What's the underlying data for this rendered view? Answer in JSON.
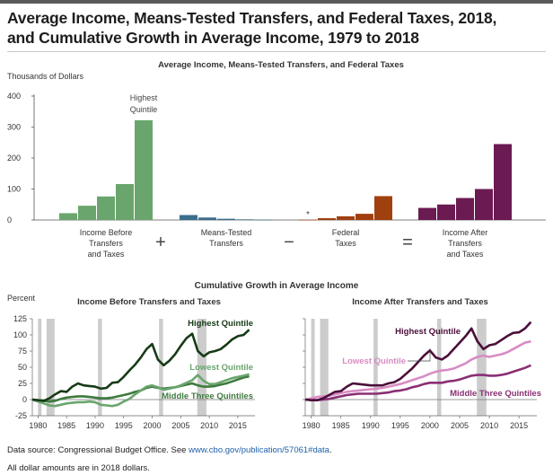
{
  "title_line1": "Average Income, Means-Tested Transfers, and Federal Taxes, 2018,",
  "title_line2": "and Cumulative Growth in Average Income, 1979 to 2018",
  "footer": {
    "source_prefix": "Data source: Congressional Budget Office. See ",
    "source_link": "www.cbo.gov/publication/57061#data",
    "source_suffix": ".",
    "note": "All dollar amounts are in 2018 dollars."
  },
  "colors": {
    "before": "#6aa56e",
    "transfers": "#3b6e8c",
    "taxes": "#a0400f",
    "after": "#6b1a52",
    "growth_before_high": "#173b17",
    "growth_before_low": "#6aa56e",
    "growth_before_mid": "#3e7a3e",
    "growth_after_high": "#4a0f3a",
    "growth_after_low": "#d88cc4",
    "growth_after_mid": "#8a2f74",
    "recession": "#cccccc"
  },
  "chart_data": [
    {
      "type": "bar",
      "title": "Average Income, Means-Tested Transfers, and Federal Taxes",
      "ylabel": "Thousands of Dollars",
      "ylim": [
        0,
        400
      ],
      "yticks": [
        0,
        100,
        200,
        300,
        400
      ],
      "annotation": "Highest Quintile",
      "asterisk": "*",
      "operators": [
        "+",
        "−",
        "="
      ],
      "groups": [
        {
          "label": "Income Before Transfers and Taxes",
          "label_lines": [
            "Income Before",
            "Transfers",
            "and Taxes"
          ],
          "values": [
            22,
            46,
            76,
            116,
            322
          ],
          "color_key": "before"
        },
        {
          "label": "Means-Tested Transfers",
          "label_lines": [
            "Means-Tested",
            "Transfers"
          ],
          "values": [
            16,
            8,
            4,
            2,
            1
          ],
          "color_key": "transfers"
        },
        {
          "label": "Federal Taxes",
          "label_lines": [
            "Federal",
            "Taxes"
          ],
          "values": [
            0.5,
            6,
            12,
            20,
            77
          ],
          "color_key": "taxes"
        },
        {
          "label": "Income After Transfers and Taxes",
          "label_lines": [
            "Income After",
            "Transfers",
            "and Taxes"
          ],
          "values": [
            39,
            50,
            71,
            100,
            245
          ],
          "color_key": "after"
        }
      ]
    },
    {
      "type": "line",
      "title": "Cumulative Growth in Average Income",
      "ylabel": "Percent",
      "ylim": [
        -25,
        125
      ],
      "yticks": [
        -25,
        0,
        25,
        50,
        75,
        100,
        125
      ],
      "xlim": [
        1979,
        2018
      ],
      "xticks": [
        1980,
        1985,
        1990,
        1995,
        2000,
        2005,
        2010,
        2015
      ],
      "recessions": [
        [
          1980,
          1980.6
        ],
        [
          1981.5,
          1982.9
        ],
        [
          1990.5,
          1991.2
        ],
        [
          2001.2,
          2001.9
        ],
        [
          2007.9,
          2009.5
        ]
      ],
      "panels": [
        {
          "title": "Income Before Transfers and Taxes",
          "series": [
            {
              "name": "Highest Quintile",
              "color_key": "growth_before_high",
              "values": [
                0,
                -1,
                -2,
                2,
                8,
                13,
                12,
                20,
                25,
                22,
                21,
                20,
                17,
                18,
                26,
                27,
                35,
                45,
                54,
                65,
                78,
                86,
                62,
                53,
                60,
                70,
                83,
                95,
                102,
                75,
                67,
                73,
                75,
                78,
                85,
                93,
                98,
                100,
                108
              ]
            },
            {
              "name": "Lowest Quintile",
              "color_key": "growth_before_low",
              "values": [
                0,
                -3,
                -6,
                -9,
                -10,
                -8,
                -6,
                -5,
                -4,
                -4,
                -3,
                -4,
                -8,
                -9,
                -10,
                -8,
                -3,
                1,
                8,
                14,
                20,
                22,
                19,
                15,
                17,
                19,
                22,
                26,
                30,
                38,
                29,
                24,
                24,
                27,
                30,
                33,
                35,
                37,
                39
              ]
            },
            {
              "name": "Middle Three Quintiles",
              "color_key": "growth_before_mid",
              "values": [
                0,
                -1,
                -2,
                -3,
                -2,
                1,
                3,
                4,
                5,
                5,
                4,
                3,
                2,
                2,
                3,
                5,
                7,
                9,
                12,
                14,
                18,
                20,
                18,
                17,
                18,
                19,
                21,
                23,
                25,
                22,
                20,
                20,
                21,
                23,
                25,
                28,
                31,
                34,
                36
              ]
            }
          ],
          "labels": [
            "Highest Quintile",
            "Lowest Quintile",
            "Middle Three Quintiles"
          ]
        },
        {
          "title": "Income After Transfers and Taxes",
          "series": [
            {
              "name": "Highest Quintile",
              "color_key": "growth_after_high",
              "values": [
                0,
                -1,
                -1,
                2,
                7,
                12,
                13,
                20,
                25,
                24,
                23,
                22,
                22,
                22,
                25,
                27,
                32,
                40,
                48,
                58,
                68,
                76,
                65,
                62,
                68,
                78,
                88,
                98,
                110,
                90,
                78,
                84,
                86,
                92,
                98,
                103,
                104,
                110,
                120
              ]
            },
            {
              "name": "Lowest Quintile",
              "color_key": "growth_after_low",
              "values": [
                0,
                2,
                4,
                5,
                6,
                8,
                10,
                12,
                13,
                14,
                15,
                16,
                17,
                18,
                20,
                22,
                24,
                27,
                30,
                33,
                36,
                40,
                43,
                45,
                46,
                48,
                52,
                56,
                62,
                66,
                68,
                66,
                68,
                70,
                73,
                78,
                83,
                88,
                90
              ]
            },
            {
              "name": "Middle Three Quintiles",
              "color_key": "growth_after_mid",
              "values": [
                0,
                0,
                -1,
                0,
                1,
                3,
                5,
                7,
                8,
                9,
                9,
                9,
                9,
                10,
                11,
                13,
                14,
                16,
                19,
                21,
                24,
                26,
                26,
                26,
                28,
                29,
                31,
                34,
                37,
                38,
                38,
                37,
                37,
                38,
                40,
                43,
                46,
                49,
                53
              ]
            }
          ],
          "labels": [
            "Highest Quintile",
            "Lowest Quintile",
            "Middle Three Quintiles"
          ]
        }
      ]
    }
  ]
}
